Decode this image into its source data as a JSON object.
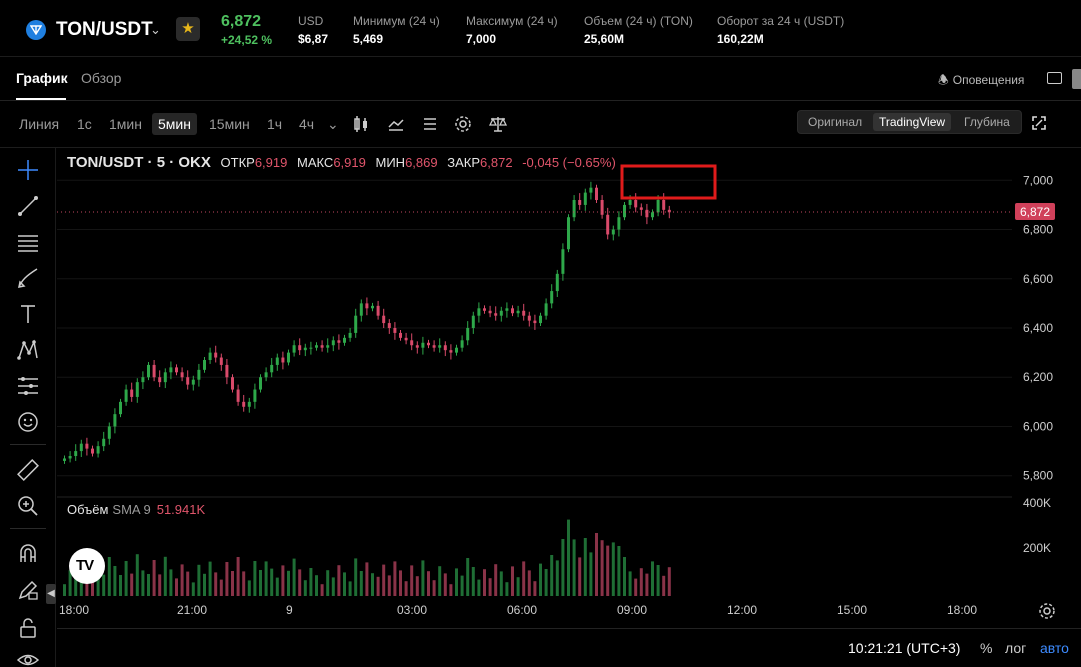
{
  "header": {
    "pair": "TON/USDT",
    "price": "6,872",
    "change": "+24,52 %",
    "stats": [
      {
        "label": "USD",
        "value": "$6,87"
      },
      {
        "label": "Минимум (24 ч)",
        "value": "5,469"
      },
      {
        "label": "Максимум (24 ч)",
        "value": "7,000"
      },
      {
        "label": "Объем (24 ч) (TON)",
        "value": "25,60M"
      },
      {
        "label": "Оборот за 24 ч (USDT)",
        "value": "160,22M"
      }
    ]
  },
  "tabs": {
    "chart": "График",
    "overview": "Обзор",
    "alerts": "Оповещения"
  },
  "toolbar": {
    "timeframes": [
      "Линия",
      "1с",
      "1мин",
      "5мин",
      "15мин",
      "1ч",
      "4ч"
    ],
    "active_timeframe": "5мин",
    "views": [
      "Оригинал",
      "TradingView",
      "Глубина"
    ],
    "active_view": "TradingView"
  },
  "legend": {
    "symbol": "TON/USDT · 5 · OKX",
    "open_label": "ОТКР",
    "open": "6,919",
    "high_label": "МАКС",
    "high": "6,919",
    "low_label": "МИН",
    "low": "6,869",
    "close_label": "ЗАКР",
    "close": "6,872",
    "change": "-0,045 (−0.65%)"
  },
  "volume": {
    "label": "Объём",
    "indicator": "SMA 9",
    "value": "51.941K"
  },
  "price_axis": [
    "7,000",
    "6,800",
    "6,600",
    "6,400",
    "6,200",
    "6,000",
    "5,800"
  ],
  "current_price_tag": "6,872",
  "volume_axis": [
    "400K",
    "200K"
  ],
  "time_axis": [
    "18:00",
    "21:00",
    "9",
    "03:00",
    "06:00",
    "09:00",
    "12:00",
    "15:00",
    "18:00"
  ],
  "status": {
    "clock": "10:21:21 (UTC+3)",
    "percent": "%",
    "log": "лог",
    "auto": "авто"
  },
  "colors": {
    "up": "#2ea84a",
    "down": "#d94a6a",
    "price_tag": "#d0405a",
    "highlight_box": "#e01b1b",
    "accent": "#3d8bff"
  },
  "icons": {
    "crosshair": "crosshair-icon",
    "trend_line": "trend-line-icon",
    "fib": "fib-icon",
    "brush": "brush-icon",
    "text": "text-icon",
    "pattern": "pattern-icon",
    "measure": "measure-icon",
    "emoji": "emoji-icon",
    "ruler": "ruler-icon",
    "zoom": "zoom-icon",
    "magnet": "magnet-icon",
    "lock": "lock-icon",
    "eye": "eye-icon"
  },
  "chart_data": {
    "type": "candlestick",
    "y_unit": "USDT",
    "ylim": [
      5.75,
      7.05
    ],
    "candles_close": [
      5.87,
      5.88,
      5.9,
      5.93,
      5.91,
      5.89,
      5.92,
      5.95,
      6.0,
      6.05,
      6.1,
      6.15,
      6.12,
      6.18,
      6.2,
      6.25,
      6.2,
      6.18,
      6.22,
      6.24,
      6.22,
      6.2,
      6.17,
      6.19,
      6.23,
      6.27,
      6.3,
      6.28,
      6.25,
      6.2,
      6.15,
      6.1,
      6.08,
      6.1,
      6.15,
      6.2,
      6.22,
      6.25,
      6.28,
      6.26,
      6.3,
      6.33,
      6.31,
      6.32,
      6.32,
      6.33,
      6.32,
      6.33,
      6.35,
      6.34,
      6.36,
      6.38,
      6.45,
      6.5,
      6.48,
      6.49,
      6.45,
      6.42,
      6.4,
      6.38,
      6.36,
      6.35,
      6.33,
      6.32,
      6.34,
      6.33,
      6.32,
      6.33,
      6.31,
      6.3,
      6.32,
      6.35,
      6.4,
      6.45,
      6.48,
      6.47,
      6.46,
      6.45,
      6.47,
      6.48,
      6.46,
      6.47,
      6.45,
      6.43,
      6.42,
      6.45,
      6.5,
      6.55,
      6.62,
      6.72,
      6.85,
      6.92,
      6.9,
      6.95,
      6.97,
      6.92,
      6.86,
      6.78,
      6.8,
      6.85,
      6.9,
      6.92,
      6.89,
      6.88,
      6.85,
      6.87,
      6.92,
      6.88,
      6.87
    ]
  }
}
